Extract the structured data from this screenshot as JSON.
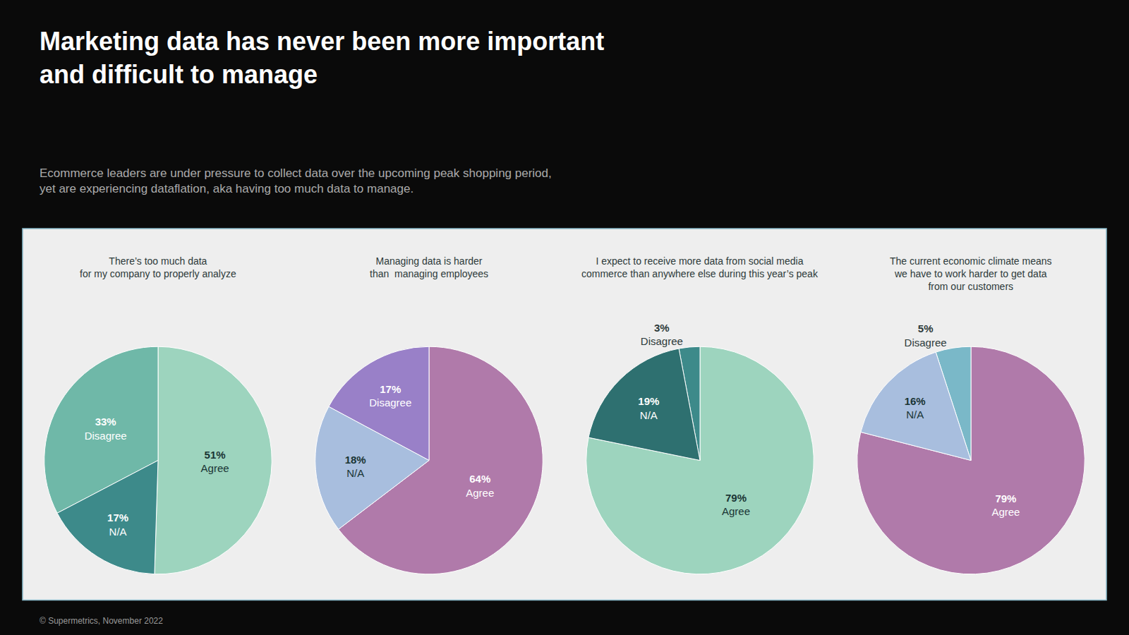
{
  "title": "Marketing data has never been more important\nand difficult to manage",
  "subtitle": "Ecommerce leaders are under pressure to collect data over the upcoming peak shopping period,\nyet are experiencing dataflation, aka having too much data to manage.",
  "annotations": [
    "© Supermetrics, November 2022"
  ],
  "chart_data": [
    {
      "type": "pie",
      "title": "There’s too much data\nfor my company to properly analyze",
      "categories": [
        "Agree",
        "Disagree",
        "N/A"
      ],
      "values": [
        51,
        33,
        17
      ],
      "value_labels": [
        "51%",
        "33%",
        "17%"
      ],
      "data_labels": true,
      "colors": [
        "#9dd4be",
        "#6fb8a8",
        "#3d8a8a"
      ]
    },
    {
      "type": "pie",
      "title": "Managing data is harder\nthan  managing employees",
      "categories": [
        "Agree",
        "Disagree",
        "N/A"
      ],
      "values": [
        64,
        17,
        18
      ],
      "value_labels": [
        "64%",
        "17%",
        "18%"
      ],
      "data_labels": true,
      "colors": [
        "#b07aaa",
        "#9980c8",
        "#a8bede"
      ]
    },
    {
      "type": "pie",
      "title": "I expect to receive more data from social media\ncommerce than anywhere else during this year’s peak",
      "categories": [
        "Agree",
        "Disagree",
        "N/A"
      ],
      "values": [
        79,
        3,
        19
      ],
      "value_labels": [
        "79%",
        "3%",
        "19%"
      ],
      "data_labels": true,
      "colors": [
        "#9dd4be",
        "#3d8a8a",
        "#2e7070"
      ]
    },
    {
      "type": "pie",
      "title": "The current economic climate means\nwe have to work harder to get data\nfrom our customers",
      "categories": [
        "Agree",
        "Disagree",
        "N/A"
      ],
      "values": [
        79,
        5,
        16
      ],
      "value_labels": [
        "79%",
        "5%",
        "16%"
      ],
      "data_labels": true,
      "colors": [
        "#b07aaa",
        "#7ab8c8",
        "#a8bede"
      ]
    }
  ]
}
